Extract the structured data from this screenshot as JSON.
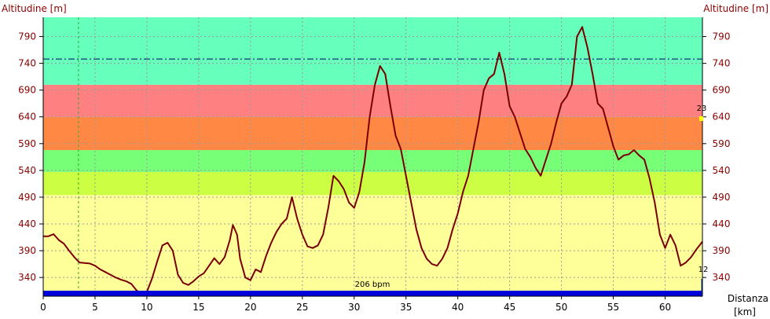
{
  "chart_data": {
    "type": "area",
    "ylabel_left": "Altitudine [m]",
    "ylabel_right": "Altitudine [m]",
    "xlabel_line1": "Distanza",
    "xlabel_line2": "[km]",
    "x_ticks": [
      0,
      5,
      10,
      15,
      20,
      25,
      30,
      35,
      40,
      45,
      50,
      55,
      60
    ],
    "y_ticks": [
      340,
      390,
      440,
      490,
      540,
      590,
      640,
      690,
      740,
      790
    ],
    "xlim": [
      0,
      63.6
    ],
    "ylim": [
      305,
      826
    ],
    "grid": true,
    "zones": [
      {
        "from": 305,
        "to": 494,
        "color": "#ffff99"
      },
      {
        "from": 494,
        "to": 537,
        "color": "#ccff44"
      },
      {
        "from": 537,
        "to": 578,
        "color": "#77ff77"
      },
      {
        "from": 578,
        "to": 640,
        "color": "#ff8844"
      },
      {
        "from": 640,
        "to": 700,
        "color": "#ff8080"
      },
      {
        "from": 700,
        "to": 826,
        "color": "#66ffbb"
      }
    ],
    "reference_line": {
      "y": 748,
      "color": "#000066",
      "style": "dash-dot"
    },
    "green_marker_x": 3.4,
    "series": [
      {
        "line_color": "#7a0000",
        "points": [
          [
            0,
            417
          ],
          [
            0.5,
            417
          ],
          [
            1,
            421
          ],
          [
            1.5,
            410
          ],
          [
            2,
            403
          ],
          [
            2.5,
            390
          ],
          [
            3,
            378
          ],
          [
            3.5,
            368
          ],
          [
            4,
            367
          ],
          [
            4.5,
            366
          ],
          [
            5,
            362
          ],
          [
            5.5,
            355
          ],
          [
            6,
            350
          ],
          [
            6.5,
            345
          ],
          [
            7,
            340
          ],
          [
            7.5,
            336
          ],
          [
            8,
            333
          ],
          [
            8.5,
            328
          ],
          [
            9,
            316
          ],
          [
            9.5,
            310
          ],
          [
            10,
            313
          ],
          [
            10.5,
            338
          ],
          [
            11,
            370
          ],
          [
            11.5,
            400
          ],
          [
            12,
            405
          ],
          [
            12.5,
            390
          ],
          [
            13,
            345
          ],
          [
            13.5,
            330
          ],
          [
            14,
            326
          ],
          [
            14.5,
            333
          ],
          [
            15,
            342
          ],
          [
            15.5,
            348
          ],
          [
            16,
            362
          ],
          [
            16.5,
            376
          ],
          [
            17,
            365
          ],
          [
            17.5,
            378
          ],
          [
            18,
            410
          ],
          [
            18.3,
            438
          ],
          [
            18.7,
            420
          ],
          [
            19,
            375
          ],
          [
            19.5,
            340
          ],
          [
            20,
            335
          ],
          [
            20.5,
            355
          ],
          [
            21,
            350
          ],
          [
            21.5,
            380
          ],
          [
            22,
            405
          ],
          [
            22.5,
            425
          ],
          [
            23,
            440
          ],
          [
            23.5,
            450
          ],
          [
            24,
            490
          ],
          [
            24.5,
            450
          ],
          [
            25,
            420
          ],
          [
            25.5,
            398
          ],
          [
            26,
            395
          ],
          [
            26.5,
            400
          ],
          [
            27,
            420
          ],
          [
            27.5,
            470
          ],
          [
            28,
            530
          ],
          [
            28.5,
            520
          ],
          [
            29,
            505
          ],
          [
            29.5,
            480
          ],
          [
            30,
            470
          ],
          [
            30.5,
            500
          ],
          [
            31,
            555
          ],
          [
            31.5,
            640
          ],
          [
            32,
            700
          ],
          [
            32.5,
            735
          ],
          [
            33,
            720
          ],
          [
            33.5,
            660
          ],
          [
            34,
            605
          ],
          [
            34.5,
            580
          ],
          [
            35,
            530
          ],
          [
            35.5,
            480
          ],
          [
            36,
            430
          ],
          [
            36.5,
            395
          ],
          [
            37,
            375
          ],
          [
            37.5,
            365
          ],
          [
            38,
            362
          ],
          [
            38.5,
            375
          ],
          [
            39,
            395
          ],
          [
            39.5,
            430
          ],
          [
            40,
            460
          ],
          [
            40.5,
            500
          ],
          [
            41,
            530
          ],
          [
            41.5,
            580
          ],
          [
            42,
            630
          ],
          [
            42.5,
            690
          ],
          [
            43,
            712
          ],
          [
            43.5,
            720
          ],
          [
            44,
            760
          ],
          [
            44.5,
            720
          ],
          [
            45,
            660
          ],
          [
            45.5,
            640
          ],
          [
            46,
            610
          ],
          [
            46.5,
            580
          ],
          [
            47,
            565
          ],
          [
            47.5,
            545
          ],
          [
            48,
            530
          ],
          [
            48.5,
            560
          ],
          [
            49,
            590
          ],
          [
            49.5,
            630
          ],
          [
            50,
            665
          ],
          [
            50.5,
            678
          ],
          [
            51,
            700
          ],
          [
            51.5,
            790
          ],
          [
            52,
            808
          ],
          [
            52.5,
            770
          ],
          [
            53,
            720
          ],
          [
            53.5,
            665
          ],
          [
            54,
            655
          ],
          [
            54.5,
            620
          ],
          [
            55,
            585
          ],
          [
            55.5,
            560
          ],
          [
            56,
            568
          ],
          [
            56.5,
            570
          ],
          [
            57,
            578
          ],
          [
            57.5,
            568
          ],
          [
            58,
            560
          ],
          [
            58.5,
            525
          ],
          [
            59,
            480
          ],
          [
            59.5,
            420
          ],
          [
            60,
            395
          ],
          [
            60.5,
            420
          ],
          [
            61,
            400
          ],
          [
            61.5,
            362
          ],
          [
            62,
            368
          ],
          [
            62.5,
            378
          ],
          [
            63,
            392
          ],
          [
            63.6,
            407
          ]
        ]
      }
    ],
    "annotations": {
      "bpm_label": "206 bpm",
      "right_label_top": "23",
      "right_label_bottom": "12"
    }
  }
}
